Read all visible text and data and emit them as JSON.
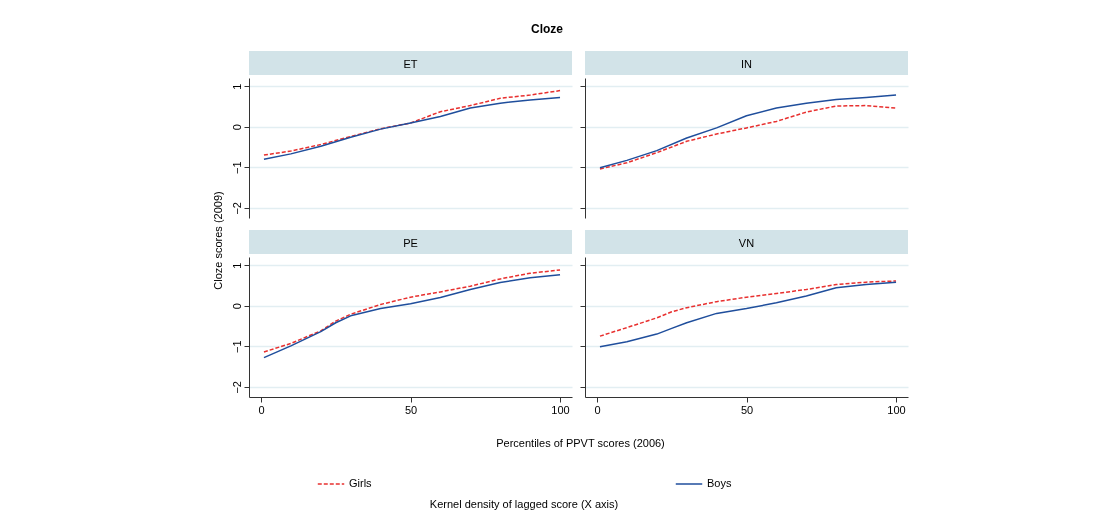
{
  "chart_data": [
    {
      "type": "line",
      "title": "ET",
      "annotations": [
        "Cloze"
      ],
      "ylabel": "Cloze scores (2009)",
      "xlim": [
        -4,
        104
      ],
      "ylim": [
        -2.25,
        1.2
      ],
      "yticks": [
        -2,
        -1,
        0,
        1
      ],
      "grid": "y",
      "tick_labels": "y",
      "x": [
        1,
        10,
        20,
        30,
        40,
        50,
        60,
        70,
        80,
        90,
        100
      ],
      "series": [
        {
          "color": "#e8302f",
          "line_style": "dashed",
          "values": [
            -0.7,
            -0.6,
            -0.44,
            -0.24,
            -0.05,
            0.09,
            0.37,
            0.52,
            0.7,
            0.78,
            0.89
          ]
        },
        {
          "color": "#1f4e9c",
          "line_style": "solid",
          "values": [
            -0.8,
            -0.67,
            -0.48,
            -0.26,
            -0.06,
            0.09,
            0.25,
            0.46,
            0.58,
            0.66,
            0.72
          ]
        }
      ]
    },
    {
      "type": "line",
      "title": "IN",
      "xlim": [
        -4,
        104
      ],
      "ylim": [
        -2.25,
        1.2
      ],
      "yticks": [
        -2,
        -1,
        0,
        1
      ],
      "grid": "y",
      "tick_labels": false,
      "x": [
        1,
        10,
        20,
        30,
        40,
        50,
        60,
        70,
        80,
        90,
        100
      ],
      "series": [
        {
          "color": "#e8302f",
          "line_style": "dashed",
          "values": [
            -1.04,
            -0.89,
            -0.64,
            -0.36,
            -0.18,
            -0.03,
            0.13,
            0.36,
            0.51,
            0.52,
            0.46
          ]
        },
        {
          "color": "#1f4e9c",
          "line_style": "solid",
          "values": [
            -1.01,
            -0.83,
            -0.59,
            -0.28,
            -0.03,
            0.27,
            0.46,
            0.58,
            0.67,
            0.72,
            0.78
          ]
        }
      ]
    },
    {
      "type": "line",
      "title": "PE",
      "xlabel": "Percentiles of PPVT scores (2006)",
      "legend": "bottom",
      "legend_title": "Kernel density of lagged score (X axis)",
      "xlim": [
        -4,
        104
      ],
      "xticks": [
        0,
        50,
        100
      ],
      "ylim": [
        -2.25,
        1.2
      ],
      "yticks": [
        -2,
        -1,
        0,
        1
      ],
      "grid": "y",
      "x": [
        1,
        10,
        20,
        25,
        30,
        40,
        50,
        60,
        70,
        80,
        90,
        100
      ],
      "series": [
        {
          "name": "Girls",
          "color": "#e8302f",
          "line_style": "dashed",
          "values": [
            -1.14,
            -0.93,
            -0.62,
            -0.38,
            -0.21,
            0.03,
            0.21,
            0.34,
            0.48,
            0.66,
            0.8,
            0.88
          ]
        },
        {
          "name": "Boys",
          "color": "#1f4e9c",
          "line_style": "solid",
          "values": [
            -1.28,
            -0.99,
            -0.64,
            -0.42,
            -0.25,
            -0.07,
            0.05,
            0.2,
            0.4,
            0.57,
            0.69,
            0.76
          ]
        }
      ]
    },
    {
      "type": "line",
      "title": "VN",
      "xlim": [
        -4,
        104
      ],
      "xticks": [
        0,
        50,
        100
      ],
      "ylim": [
        -2.25,
        1.2
      ],
      "yticks": [
        -2,
        -1,
        0,
        1
      ],
      "grid": "y",
      "tick_labels": "x",
      "x": [
        1,
        10,
        20,
        25,
        30,
        40,
        50,
        60,
        70,
        80,
        90,
        100
      ],
      "series": [
        {
          "color": "#e8302f",
          "line_style": "dashed",
          "values": [
            -0.75,
            -0.54,
            -0.3,
            -0.15,
            -0.05,
            0.1,
            0.21,
            0.3,
            0.4,
            0.52,
            0.58,
            0.61
          ]
        },
        {
          "color": "#1f4e9c",
          "line_style": "solid",
          "values": [
            -1.01,
            -0.89,
            -0.7,
            -0.56,
            -0.42,
            -0.19,
            -0.07,
            0.07,
            0.24,
            0.44,
            0.52,
            0.58
          ]
        }
      ]
    }
  ]
}
